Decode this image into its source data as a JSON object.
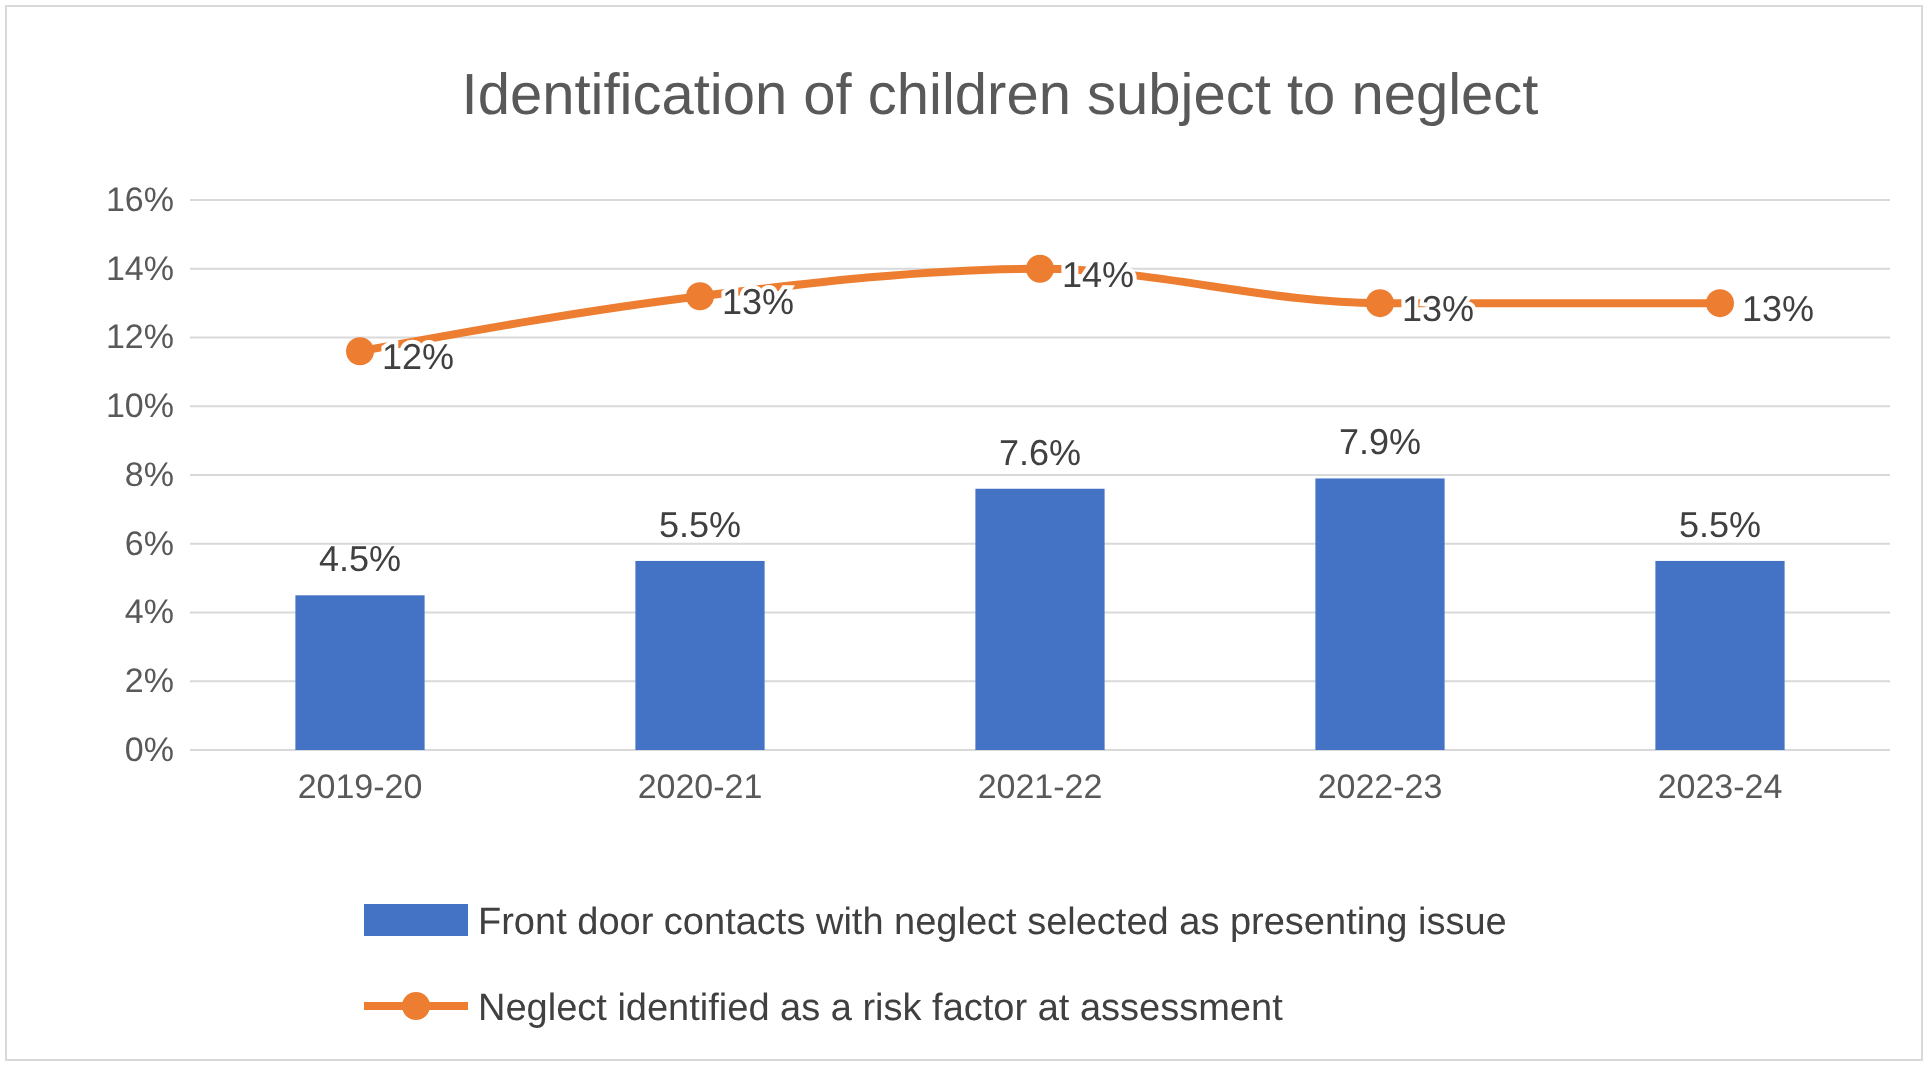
{
  "chart_data": {
    "type": "bar",
    "title": "Identification of children subject to neglect",
    "categories": [
      "2019-20",
      "2020-21",
      "2021-22",
      "2022-23",
      "2023-24"
    ],
    "series": [
      {
        "name": "Front door contacts with neglect selected as presenting issue",
        "color": "#4472c4",
        "values": [
          4.5,
          5.5,
          7.6,
          7.9,
          5.5
        ],
        "value_labels": [
          "4.5%",
          "5.5%",
          "7.6%",
          "7.9%",
          "5.5%"
        ]
      },
      {
        "name": "Neglect identified as a risk factor at assessment",
        "type": "line",
        "color": "#ed7d31",
        "values": [
          11.6,
          13.2,
          14.0,
          13.0,
          13.0
        ],
        "value_labels": [
          "12%",
          "13%",
          "14%",
          "13%",
          "13%"
        ]
      }
    ],
    "ylim": [
      0,
      16
    ],
    "yticks": [
      {
        "value": 0,
        "label": "0%"
      },
      {
        "value": 2,
        "label": "2%"
      },
      {
        "value": 4,
        "label": "4%"
      },
      {
        "value": 6,
        "label": "6%"
      },
      {
        "value": 8,
        "label": "8%"
      },
      {
        "value": 10,
        "label": "10%"
      },
      {
        "value": 12,
        "label": "12%"
      },
      {
        "value": 14,
        "label": "14%"
      },
      {
        "value": 16,
        "label": "16%"
      }
    ],
    "grid": "y",
    "legend": "bottom",
    "marker": "circle",
    "line_style": "solid"
  }
}
